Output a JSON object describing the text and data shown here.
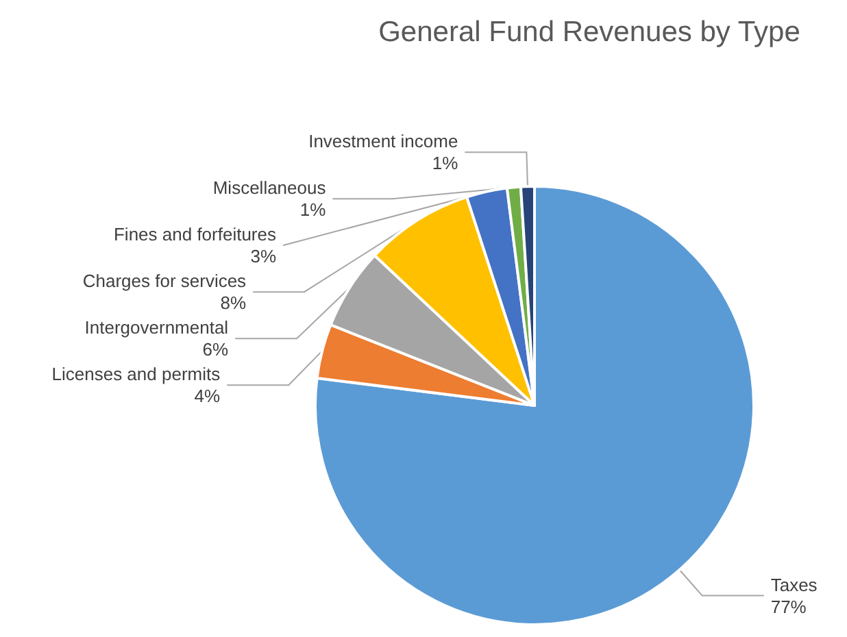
{
  "chart_data": {
    "type": "pie",
    "title": "General Fund Revenues by Type",
    "categories": [
      "Taxes",
      "Licenses and permits",
      "Intergovernmental",
      "Charges for services",
      "Fines and forfeitures",
      "Miscellaneous",
      "Investment income"
    ],
    "values": [
      77,
      4,
      6,
      8,
      3,
      1,
      1
    ],
    "value_labels": [
      "77%",
      "4%",
      "6%",
      "8%",
      "3%",
      "1%",
      "1%"
    ],
    "colors": [
      "#5b9bd5",
      "#ed7d31",
      "#a5a5a5",
      "#ffc000",
      "#4472c4",
      "#70ad47",
      "#264478"
    ],
    "legend": false
  }
}
